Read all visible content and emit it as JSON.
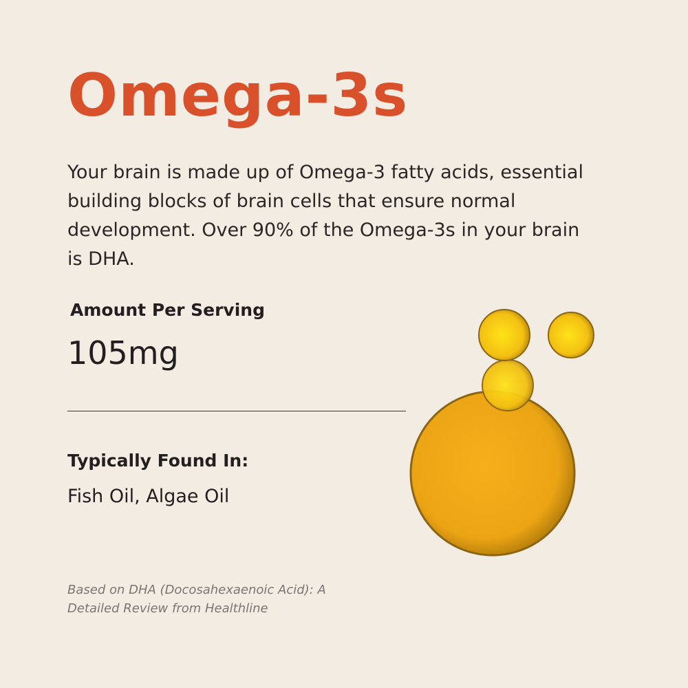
{
  "title": "Omega-3s",
  "description": "Your brain is made up of Omega-3 fatty acids, essential building blocks of brain cells that ensure normal development. Over 90% of the Omega-3s in your brain is DHA.",
  "serving": {
    "label": "Amount Per Serving",
    "value": "105mg"
  },
  "sources": {
    "label": "Typically Found In:",
    "value": "Fish Oil, Algae Oil"
  },
  "footnote": "Based on DHA (Docosahexaenoic Acid): A Detailed Review from Healthline",
  "colors": {
    "accent": "#d9512a",
    "background": "#f3ece3",
    "oil": "#f0a81a"
  }
}
